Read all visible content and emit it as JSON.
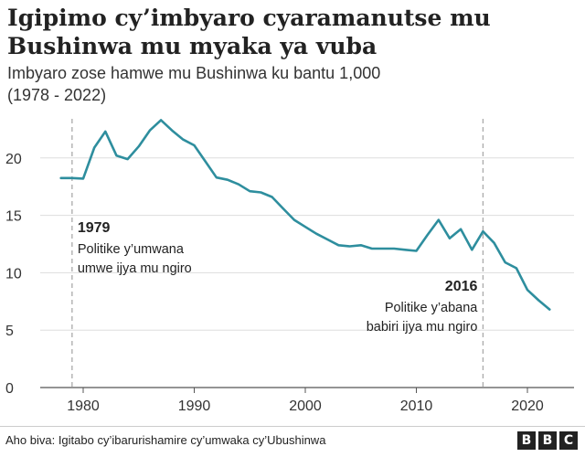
{
  "chart_data": {
    "type": "line",
    "title_lines": [
      "Igipimo cy’imbyaro cyaramanutse mu",
      "Bushinwa mu myaka ya vuba"
    ],
    "subtitle_lines": [
      "Imbyaro zose hamwe mu Bushinwa ku bantu 1,000",
      "(1978 - 2022)"
    ],
    "xlabel": "",
    "ylabel": "",
    "xlim": [
      1975,
      2024
    ],
    "ylim": [
      0,
      25
    ],
    "x_ticks": [
      1980,
      1990,
      2000,
      2010,
      2020
    ],
    "y_ticks": [
      0,
      5,
      10,
      15,
      20
    ],
    "grid": "horizontal",
    "line_color": "#2e8e9e",
    "series": [
      {
        "x": [
          1978,
          1979,
          1980,
          1981,
          1982,
          1983,
          1984,
          1985,
          1986,
          1987,
          1988,
          1989,
          1990,
          1991,
          1992,
          1993,
          1994,
          1995,
          1996,
          1997,
          1998,
          1999,
          2000,
          2001,
          2002,
          2003,
          2004,
          2005,
          2006,
          2007,
          2008,
          2009,
          2010,
          2011,
          2012,
          2013,
          2014,
          2015,
          2016,
          2017,
          2018,
          2019,
          2020,
          2021,
          2022
        ],
        "values": [
          18.25,
          18.25,
          18.2,
          20.9,
          22.3,
          20.2,
          19.9,
          21.0,
          22.4,
          23.3,
          22.4,
          21.6,
          21.1,
          19.7,
          18.3,
          18.1,
          17.7,
          17.1,
          17.0,
          16.6,
          15.6,
          14.6,
          14.0,
          13.4,
          12.9,
          12.4,
          12.3,
          12.4,
          12.1,
          12.1,
          12.1,
          12.0,
          11.9,
          13.3,
          14.6,
          13.0,
          13.8,
          12.0,
          13.6,
          12.6,
          10.9,
          10.4,
          8.5,
          7.6,
          6.8
        ]
      }
    ],
    "annotations": [
      {
        "year": 1979,
        "label": "1979",
        "text_lines": [
          "Politike y’umwana",
          "umwe ijya mu ngiro"
        ]
      },
      {
        "year": 2016,
        "label": "2016",
        "text_lines": [
          "Politike y’abana",
          "babiri ijya mu ngiro"
        ]
      }
    ]
  },
  "footer": {
    "source": "Aho biva: Igitabo cy’ibarurishamire cy’umwaka cy’Ubushinwa",
    "logo_letters": [
      "B",
      "B",
      "C"
    ]
  }
}
